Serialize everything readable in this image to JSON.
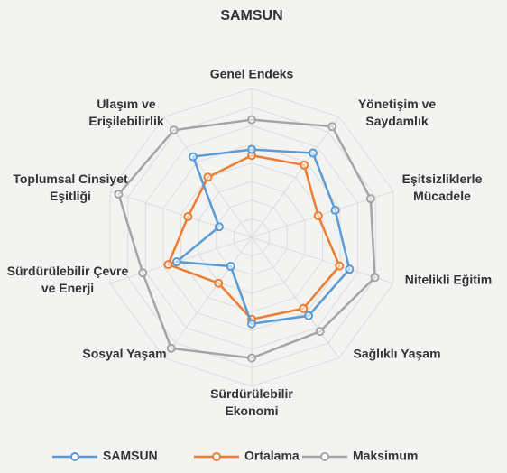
{
  "chart_data": {
    "type": "radar",
    "title": "SAMSUN",
    "categories": [
      "Genel Endeks",
      "Yönetişim ve Saydamlık",
      "Eşitsizliklerle Mücadele",
      "Nitelikli Eğitim",
      "Sağlıklı Yaşam",
      "Sürdürülebilir Ekonomi",
      "Sosyal Yaşam",
      "Sürdürülebilir Çevre ve Enerji",
      "Toplumsal Cinsiyet Eşitliği",
      "Ulaşım ve Erişilebilirlik"
    ],
    "series": [
      {
        "name": "SAMSUN",
        "color": "#5b9bd5",
        "values": [
          0.59,
          0.7,
          0.59,
          0.69,
          0.65,
          0.58,
          0.24,
          0.53,
          0.23,
          0.67
        ]
      },
      {
        "name": "Ortalama",
        "color": "#ed7d31",
        "values": [
          0.55,
          0.6,
          0.47,
          0.62,
          0.59,
          0.55,
          0.38,
          0.59,
          0.45,
          0.5
        ]
      },
      {
        "name": "Maksimum",
        "color": "#a5a5a5",
        "values": [
          0.79,
          0.92,
          0.84,
          0.87,
          0.78,
          0.81,
          0.92,
          0.77,
          0.94,
          0.89
        ]
      }
    ],
    "rlim": [
      0,
      1
    ],
    "rticks": [
      0.125,
      0.25,
      0.375,
      0.5,
      0.625,
      0.75,
      0.875,
      1
    ],
    "legend": "bottom"
  }
}
